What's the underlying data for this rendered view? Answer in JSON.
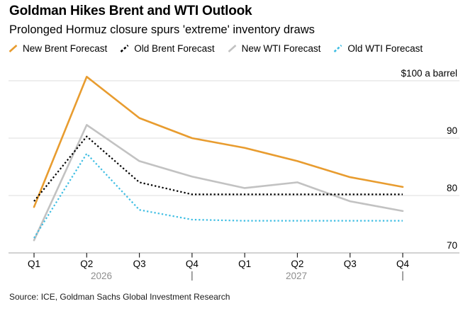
{
  "header": {
    "title": "Goldman Hikes Brent and WTI Outlook",
    "subtitle": "Prolonged Hormuz closure spurs 'extreme' inventory draws"
  },
  "chart_data": {
    "type": "line",
    "title": "Goldman Hikes Brent and WTI Outlook",
    "subtitle": "Prolonged Hormuz closure spurs 'extreme' inventory draws",
    "legend_position": "top",
    "grid": "horizontal",
    "quarters": [
      "Q1",
      "Q2",
      "Q3",
      "Q4",
      "Q1",
      "Q2",
      "Q3",
      "Q4"
    ],
    "years": [
      "2026",
      "2027"
    ],
    "y_axis": {
      "top_label": "$100 a barrel",
      "ticks": [
        100,
        90,
        80,
        70
      ],
      "tick_labels": [
        "90",
        "80",
        "70"
      ],
      "range": [
        70,
        100
      ]
    },
    "series": [
      {
        "id": "new-brent-forecast",
        "name": "New Brent Forecast",
        "color": "#E89C2F",
        "line_style": "solid",
        "values": [
          78,
          100.7,
          93.5,
          90,
          88.3,
          86,
          83.2,
          81.5
        ]
      },
      {
        "id": "old-brent-forecast",
        "name": "Old Brent Forecast",
        "color": "#000000",
        "line_style": "dotted",
        "values": [
          79,
          90.3,
          82.3,
          80.2,
          80.2,
          80.2,
          80.2,
          80.2
        ]
      },
      {
        "id": "new-wti-forecast",
        "name": "New WTI Forecast",
        "color": "#C2C2C2",
        "line_style": "solid",
        "values": [
          72.2,
          92.3,
          86,
          83.3,
          81.3,
          82.3,
          79,
          77.3
        ]
      },
      {
        "id": "old-wti-forecast",
        "name": "Old WTI Forecast",
        "color": "#3FBEE3",
        "line_style": "dotted",
        "values": [
          72.6,
          87.3,
          77.5,
          75.8,
          75.6,
          75.6,
          75.6,
          75.6
        ]
      }
    ]
  },
  "source": "Source: ICE, Goldman Sachs Global Investment Research"
}
